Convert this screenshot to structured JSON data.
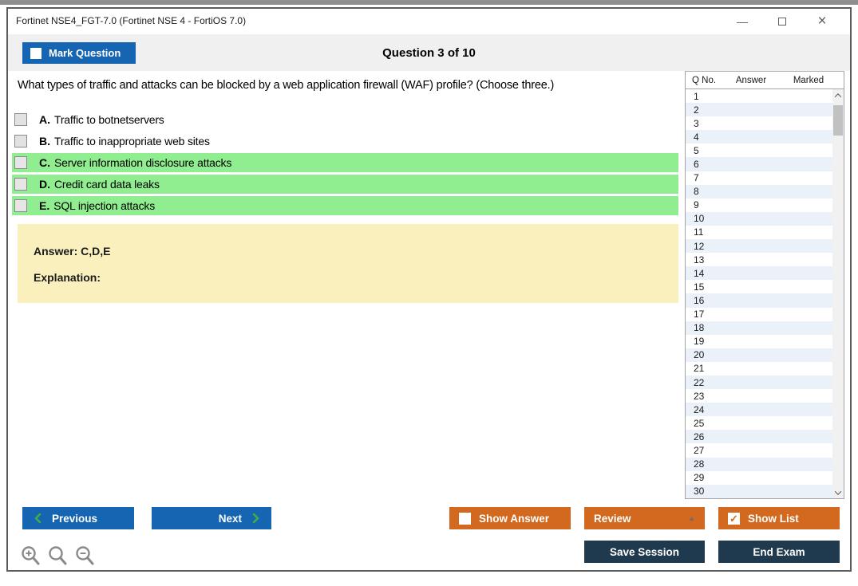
{
  "window": {
    "title": "Fortinet NSE4_FGT-7.0 (Fortinet NSE 4 - FortiOS 7.0)",
    "controls": {
      "minimize_icon": "—",
      "close_icon": "×"
    }
  },
  "header": {
    "mark_question_label": "Mark Question",
    "question_counter": "Question 3 of 10"
  },
  "question": {
    "text": "What types of traffic and attacks can be blocked by a web application firewall (WAF) profile? (Choose three.)",
    "options": [
      {
        "key": "A.",
        "text": "Traffic to botnetservers",
        "highlighted": false,
        "checked": false
      },
      {
        "key": "B.",
        "text": "Traffic to inappropriate web sites",
        "highlighted": false,
        "checked": false
      },
      {
        "key": "C.",
        "text": "Server information disclosure attacks",
        "highlighted": true,
        "checked": false
      },
      {
        "key": "D.",
        "text": "Credit card data leaks",
        "highlighted": true,
        "checked": false
      },
      {
        "key": "E.",
        "text": "SQL injection attacks",
        "highlighted": true,
        "checked": false
      }
    ]
  },
  "answer_box": {
    "answer_label": "Answer: C,D,E",
    "explanation_label": "Explanation:"
  },
  "question_list": {
    "columns": [
      "Q No.",
      "Answer",
      "Marked"
    ],
    "visible_q_numbers": [
      "1",
      "2",
      "3",
      "4",
      "5",
      "6",
      "7",
      "8",
      "9",
      "10",
      "11",
      "12",
      "13",
      "14",
      "15",
      "16",
      "17",
      "18",
      "19",
      "20",
      "21",
      "22",
      "23",
      "24",
      "25",
      "26",
      "27",
      "28",
      "29",
      "30"
    ],
    "answers": "",
    "marked": ""
  },
  "footer": {
    "previous_label": "Previous",
    "next_label": "Next",
    "show_answer_label": "Show Answer",
    "show_answer_checked": false,
    "review_label": "Review",
    "review_dropdown_icon": "▲",
    "show_list_label": "Show List",
    "show_list_checked": true,
    "show_list_check_icon": "✓",
    "save_session_label": "Save Session",
    "end_exam_label": "End Exam"
  },
  "colors": {
    "accent_blue": "#1565b3",
    "accent_orange": "#d2691e",
    "accent_navy": "#1f3a4e",
    "highlight_green": "#90ee90",
    "answer_yellow": "#faf0be",
    "chevron_green": "#3cb043",
    "row_alt_blue": "#eaf1f8",
    "strip_gray": "#f0f0f0"
  }
}
